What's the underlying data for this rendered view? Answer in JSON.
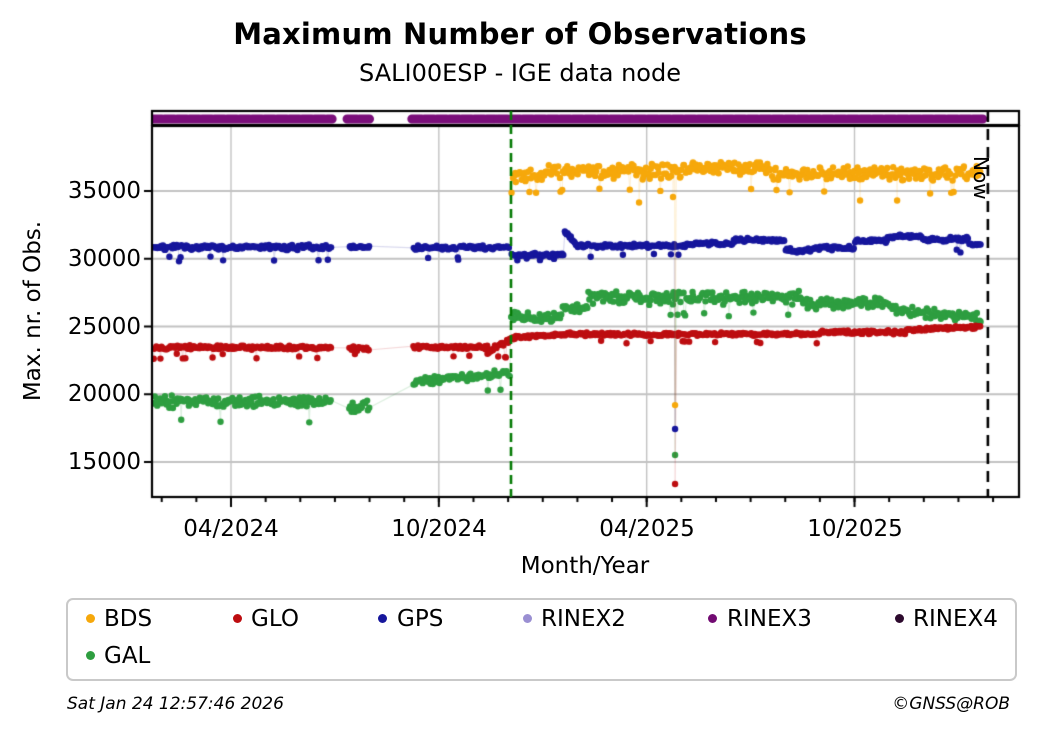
{
  "title": "Maximum Number of Observations",
  "subtitle": "SALI00ESP - IGE data node",
  "axes": {
    "ylabel": "Max. nr. of Obs.",
    "xlabel": "Month/Year",
    "yticks": [
      "15000",
      "20000",
      "25000",
      "30000",
      "35000"
    ],
    "xticks": [
      "04/2024",
      "10/2024",
      "04/2025",
      "10/2025"
    ],
    "now_label": "Now"
  },
  "legend": {
    "items": [
      {
        "label": "BDS",
        "color": "#f6a80b"
      },
      {
        "label": "GLO",
        "color": "#bd0d10"
      },
      {
        "label": "GPS",
        "color": "#16169c"
      },
      {
        "label": "RINEX2",
        "color": "#9a8fd2"
      },
      {
        "label": "RINEX3",
        "color": "#720b72"
      },
      {
        "label": "RINEX4",
        "color": "#2d0a2e"
      },
      {
        "label": "GAL",
        "color": "#2e9e40"
      }
    ]
  },
  "footer": {
    "timestamp": "Sat Jan 24 12:57:46 2026",
    "credit": "©GNSS@ROB"
  },
  "chart_data": {
    "type": "scatter",
    "title": "Maximum Number of Observations",
    "subtitle": "SALI00ESP - IGE data node",
    "x_unit": "months_since_2024-01-01",
    "x_range": [
      0.72,
      25.75
    ],
    "y_range": [
      12417,
      39800
    ],
    "grid": {
      "color": "#c2c2c2",
      "y_lines": [
        15000,
        20000,
        25000,
        30000,
        35000
      ],
      "x_lines_at_major_ticks": true
    },
    "x_major_ticks": [
      {
        "m": 3,
        "label": "04/2024"
      },
      {
        "m": 9,
        "label": "10/2024"
      },
      {
        "m": 15,
        "label": "04/2025"
      },
      {
        "m": 21,
        "label": "10/2025"
      }
    ],
    "x_minor_tick_months": [
      1,
      2,
      3,
      4,
      5,
      6,
      7,
      8,
      9,
      10,
      11,
      12,
      13,
      14,
      15,
      16,
      17,
      18,
      19,
      20,
      21,
      22,
      23,
      24,
      25
    ],
    "y_ticks": [
      15000,
      20000,
      25000,
      30000,
      35000
    ],
    "now_line": {
      "m": 24.85,
      "label": "Now",
      "color": "#000000",
      "dash": [
        11,
        7
      ]
    },
    "event_line": {
      "m": 11.083,
      "color": "#057a05",
      "dash": [
        9,
        5
      ]
    },
    "rinex3_band": {
      "color": "#7a0e7a",
      "segments_m": [
        [
          0.72,
          5.92
        ],
        [
          6.35,
          7.06
        ],
        [
          8.22,
          10.62
        ],
        [
          10.7,
          24.72
        ]
      ],
      "dash": [
        10,
        2.5
      ],
      "thickness": 9
    },
    "series": [
      {
        "name": "GAL",
        "color": "#2e9e40",
        "seed": 21,
        "segments": [
          {
            "m0": 0.75,
            "m1": 5.9,
            "y": 19450,
            "spread": 520,
            "n": 155,
            "dip": {
              "rate": 0.03,
              "y": 18050,
              "jitter": 400
            }
          },
          {
            "m0": 6.4,
            "m1": 7.0,
            "y": 19100,
            "spread": 600,
            "n": 18
          },
          {
            "m0": 8.25,
            "m1": 11.05,
            "y": 20900,
            "y_end": 21550,
            "spread": 330,
            "n": 84,
            "dip": {
              "rate": 0.04,
              "y": 20350,
              "jitter": 250
            }
          },
          {
            "m0": 11.08,
            "m1": 12.55,
            "y": 25650,
            "spread": 480,
            "n": 44
          },
          {
            "m0": 12.55,
            "m1": 13.3,
            "y": 26300,
            "spread": 420,
            "n": 22
          },
          {
            "m0": 13.3,
            "m1": 19.5,
            "y": 27150,
            "spread": 560,
            "n": 186,
            "dip": {
              "rate": 0.03,
              "y": 25900,
              "jitter": 300
            }
          },
          {
            "m0": 19.5,
            "m1": 22.0,
            "y": 26700,
            "spread": 520,
            "n": 75
          },
          {
            "m0": 22.0,
            "m1": 24.65,
            "y": 26300,
            "y_end": 25600,
            "spread": 420,
            "n": 79
          }
        ],
        "outliers": [
          [
            15.82,
            15520
          ]
        ]
      },
      {
        "name": "GLO",
        "color": "#bd0d10",
        "seed": 13,
        "segments": [
          {
            "m0": 0.75,
            "m1": 5.9,
            "y": 23450,
            "spread": 180,
            "n": 155,
            "dip": {
              "rate": 0.08,
              "y": 22850,
              "jitter": 500
            }
          },
          {
            "m0": 6.4,
            "m1": 7.0,
            "y": 23350,
            "spread": 220,
            "n": 18,
            "dip": {
              "rate": 0.15,
              "y": 22850,
              "jitter": 300
            }
          },
          {
            "m0": 8.25,
            "m1": 10.4,
            "y": 23480,
            "spread": 170,
            "n": 64,
            "dip": {
              "rate": 0.05,
              "y": 22900,
              "jitter": 300
            }
          },
          {
            "m0": 10.4,
            "m1": 11.05,
            "y": 23200,
            "y_end": 23950,
            "spread": 280,
            "n": 20,
            "dip": {
              "rate": 0.1,
              "y": 22750,
              "jitter": 200
            }
          },
          {
            "m0": 11.05,
            "m1": 12.4,
            "y": 24150,
            "y_end": 24400,
            "spread": 140,
            "n": 40
          },
          {
            "m0": 12.4,
            "m1": 20.0,
            "y": 24430,
            "spread": 140,
            "n": 228,
            "dip": {
              "rate": 0.03,
              "y": 23850,
              "jitter": 250
            }
          },
          {
            "m0": 20.0,
            "m1": 22.5,
            "y": 24580,
            "spread": 160,
            "n": 75,
            "dip": {
              "rate": 0.05,
              "y": 23900,
              "jitter": 300
            }
          },
          {
            "m0": 22.5,
            "m1": 24.65,
            "y": 24750,
            "y_end": 24980,
            "spread": 130,
            "n": 64
          }
        ],
        "outliers": [
          [
            15.82,
            13380
          ]
        ]
      },
      {
        "name": "GPS",
        "color": "#16169c",
        "seed": 7,
        "segments": [
          {
            "m0": 0.75,
            "m1": 5.9,
            "y": 30850,
            "spread": 220,
            "n": 155,
            "dip": {
              "rate": 0.1,
              "y": 30050,
              "jitter": 500
            }
          },
          {
            "m0": 6.4,
            "m1": 7.0,
            "y": 30870,
            "spread": 120,
            "n": 18
          },
          {
            "m0": 8.25,
            "m1": 11.05,
            "y": 30820,
            "spread": 190,
            "n": 84,
            "dip": {
              "rate": 0.08,
              "y": 30050,
              "jitter": 350
            }
          },
          {
            "m0": 11.08,
            "m1": 12.62,
            "y": 30280,
            "spread": 190,
            "n": 46,
            "dip": {
              "rate": 0.05,
              "y": 29950,
              "jitter": 150
            }
          },
          {
            "m0": 12.62,
            "m1": 12.95,
            "y": 32050,
            "y_end": 31150,
            "spread": 150,
            "n": 11
          },
          {
            "m0": 12.95,
            "m1": 16.2,
            "y": 30960,
            "spread": 190,
            "n": 97,
            "dip": {
              "rate": 0.05,
              "y": 30250,
              "jitter": 300
            }
          },
          {
            "m0": 16.2,
            "m1": 17.5,
            "y": 31120,
            "spread": 170,
            "n": 39
          },
          {
            "m0": 17.5,
            "m1": 19.0,
            "y": 31380,
            "spread": 150,
            "n": 45
          },
          {
            "m0": 19.0,
            "m1": 19.75,
            "y": 30600,
            "spread": 200,
            "n": 22,
            "dip": {
              "rate": 0.06,
              "y": 29950,
              "jitter": 200
            }
          },
          {
            "m0": 19.75,
            "m1": 21.0,
            "y": 30800,
            "spread": 180,
            "n": 37
          },
          {
            "m0": 21.0,
            "m1": 21.95,
            "y": 31300,
            "spread": 150,
            "n": 28
          },
          {
            "m0": 21.95,
            "m1": 22.95,
            "y": 31650,
            "spread": 160,
            "n": 30
          },
          {
            "m0": 22.95,
            "m1": 24.3,
            "y": 31450,
            "spread": 220,
            "n": 40,
            "dip": {
              "rate": 0.07,
              "y": 30600,
              "jitter": 300
            }
          },
          {
            "m0": 24.3,
            "m1": 24.65,
            "y": 31050,
            "spread": 140,
            "n": 10
          }
        ],
        "outliers": [
          [
            15.82,
            17430
          ]
        ]
      },
      {
        "name": "BDS",
        "color": "#f6a80b",
        "seed": 33,
        "segments": [
          {
            "m0": 11.08,
            "m1": 12.1,
            "y": 36050,
            "spread": 600,
            "n": 30,
            "dip": {
              "rate": 0.06,
              "y": 34900,
              "jitter": 400
            }
          },
          {
            "m0": 12.1,
            "m1": 16.0,
            "y": 36450,
            "spread": 680,
            "n": 117,
            "dip": {
              "rate": 0.025,
              "y": 35050,
              "jitter": 250
            }
          },
          {
            "m0": 16.0,
            "m1": 18.6,
            "y": 36750,
            "spread": 620,
            "n": 78,
            "dip": {
              "rate": 0.02,
              "y": 35050,
              "jitter": 250
            }
          },
          {
            "m0": 18.6,
            "m1": 21.0,
            "y": 36250,
            "spread": 620,
            "n": 72,
            "dip": {
              "rate": 0.03,
              "y": 35000,
              "jitter": 300
            }
          },
          {
            "m0": 21.0,
            "m1": 24.65,
            "y": 36350,
            "spread": 650,
            "n": 110,
            "dip": {
              "rate": 0.03,
              "y": 34800,
              "jitter": 600
            }
          }
        ],
        "outliers": [
          [
            14.78,
            34150
          ],
          [
            15.76,
            34560
          ],
          [
            15.82,
            19200
          ],
          [
            21.16,
            34300
          ],
          [
            22.23,
            34300
          ]
        ]
      }
    ]
  }
}
